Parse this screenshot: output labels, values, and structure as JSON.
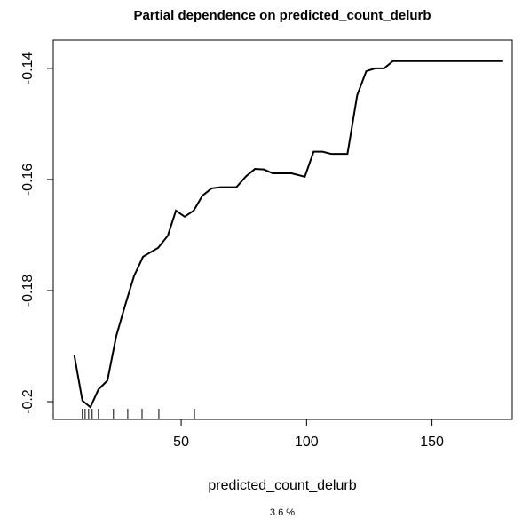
{
  "chart_data": {
    "type": "line",
    "title": "Partial dependence on predicted_count_delurb",
    "xlabel": "predicted_count_delurb",
    "subtitle": "3.6 %",
    "x": [
      7.4,
      10.6,
      13.8,
      17.0,
      20.6,
      24.1,
      27.7,
      31.2,
      34.8,
      40.8,
      44.7,
      47.9,
      51.4,
      55.0,
      58.5,
      62.1,
      65.6,
      72.0,
      75.9,
      79.4,
      83.0,
      86.5,
      94.0,
      99.3,
      102.8,
      106.4,
      109.9,
      116.3,
      120.2,
      123.8,
      127.3,
      130.9,
      134.4,
      178.4
    ],
    "series": [
      {
        "color": "#000000",
        "values": [
          -0.1917,
          -0.1998,
          -0.201,
          -0.1978,
          -0.1962,
          -0.1882,
          -0.1826,
          -0.1774,
          -0.1739,
          -0.1723,
          -0.1701,
          -0.1656,
          -0.1667,
          -0.1656,
          -0.1629,
          -0.1616,
          -0.1614,
          -0.1614,
          -0.1594,
          -0.1581,
          -0.1582,
          -0.1589,
          -0.1589,
          -0.1595,
          -0.155,
          -0.155,
          -0.1554,
          -0.1554,
          -0.1448,
          -0.1405,
          -0.14,
          -0.14,
          -0.1387,
          -0.1387
        ]
      }
    ],
    "rug": [
      10.6,
      11.7,
      13.1,
      14.5,
      17.0,
      23.0,
      28.7,
      34.4,
      41.1,
      55.3
    ],
    "xlim": [
      -1,
      182
    ],
    "ylim": [
      -0.2032,
      -0.1349
    ],
    "xticks": [
      50,
      100,
      150
    ],
    "yticks": [
      -0.2,
      -0.18,
      -0.16,
      -0.14
    ],
    "grid": false
  }
}
